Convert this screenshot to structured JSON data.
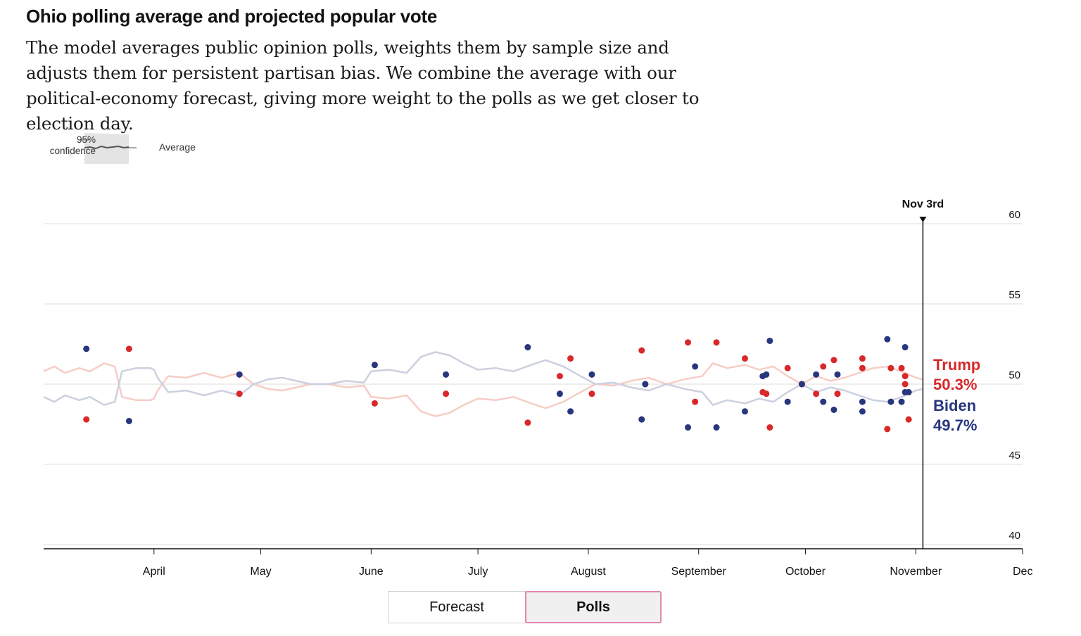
{
  "header": {
    "title": "Ohio polling average and projected popular vote",
    "description": "The model averages public opinion polls, weights them by sample size and adjusts them for persistent partisan bias. We combine the average with our political-economy forecast, giving more weight to the polls as we get closer to election day."
  },
  "legend": {
    "confidence_label_line1": "95%",
    "confidence_label_line2": "confidence",
    "average_label": "Average"
  },
  "toggle": {
    "forecast_label": "Forecast",
    "polls_label": "Polls",
    "active": "Polls"
  },
  "colors": {
    "trump": "#d8282a",
    "biden": "#28367d",
    "trump_line": "#f6cdc6",
    "biden_line": "#ccd0df",
    "grid": "#dcdcdc",
    "axis": "#121212"
  },
  "chart_data": {
    "type": "scatter",
    "ylim": [
      40,
      60
    ],
    "yticks": [
      40,
      45,
      50,
      55,
      60
    ],
    "xlim": [
      "2020-03-01",
      "2020-12-01"
    ],
    "xticks": [
      {
        "label": "April",
        "date": "2020-04-01"
      },
      {
        "label": "May",
        "date": "2020-05-01"
      },
      {
        "label": "June",
        "date": "2020-06-01"
      },
      {
        "label": "July",
        "date": "2020-07-01"
      },
      {
        "label": "August",
        "date": "2020-08-01"
      },
      {
        "label": "September",
        "date": "2020-09-01"
      },
      {
        "label": "October",
        "date": "2020-10-01"
      },
      {
        "label": "November",
        "date": "2020-11-01"
      },
      {
        "label": "Dec",
        "date": "2020-12-01"
      }
    ],
    "election_marker": {
      "label": "Nov 3rd",
      "date": "2020-11-03"
    },
    "series": [
      {
        "name": "Trump",
        "final_label": "50.3%",
        "color": "#d8282a",
        "average": [
          [
            "2020-03-01",
            50.8
          ],
          [
            "2020-03-04",
            51.1
          ],
          [
            "2020-03-07",
            50.7
          ],
          [
            "2020-03-11",
            51.0
          ],
          [
            "2020-03-14",
            50.8
          ],
          [
            "2020-03-18",
            51.3
          ],
          [
            "2020-03-21",
            51.1
          ],
          [
            "2020-03-23",
            49.2
          ],
          [
            "2020-03-27",
            49.0
          ],
          [
            "2020-04-01",
            49.1
          ],
          [
            "2020-03-31",
            49.0
          ],
          [
            "2020-04-02",
            49.6
          ],
          [
            "2020-04-05",
            50.5
          ],
          [
            "2020-04-10",
            50.4
          ],
          [
            "2020-04-15",
            50.7
          ],
          [
            "2020-04-20",
            50.4
          ],
          [
            "2020-04-25",
            50.7
          ],
          [
            "2020-04-29",
            50.0
          ],
          [
            "2020-05-03",
            49.7
          ],
          [
            "2020-05-07",
            49.6
          ],
          [
            "2020-05-11",
            49.8
          ],
          [
            "2020-05-15",
            50.0
          ],
          [
            "2020-05-20",
            50.0
          ],
          [
            "2020-05-25",
            49.8
          ],
          [
            "2020-05-30",
            49.9
          ],
          [
            "2020-06-01",
            49.2
          ],
          [
            "2020-06-06",
            49.1
          ],
          [
            "2020-06-11",
            49.3
          ],
          [
            "2020-06-15",
            48.3
          ],
          [
            "2020-06-19",
            48.0
          ],
          [
            "2020-06-23",
            48.2
          ],
          [
            "2020-06-27",
            48.7
          ],
          [
            "2020-07-01",
            49.1
          ],
          [
            "2020-07-06",
            49.0
          ],
          [
            "2020-07-11",
            49.2
          ],
          [
            "2020-07-16",
            48.8
          ],
          [
            "2020-07-20",
            48.5
          ],
          [
            "2020-07-25",
            48.9
          ],
          [
            "2020-07-29",
            49.4
          ],
          [
            "2020-08-03",
            50.0
          ],
          [
            "2020-08-08",
            49.9
          ],
          [
            "2020-08-13",
            50.2
          ],
          [
            "2020-08-18",
            50.4
          ],
          [
            "2020-08-23",
            50.0
          ],
          [
            "2020-08-28",
            50.3
          ],
          [
            "2020-09-02",
            50.5
          ],
          [
            "2020-09-05",
            51.3
          ],
          [
            "2020-09-09",
            51.0
          ],
          [
            "2020-09-14",
            51.2
          ],
          [
            "2020-09-18",
            50.9
          ],
          [
            "2020-09-22",
            51.1
          ],
          [
            "2020-09-26",
            50.5
          ],
          [
            "2020-09-30",
            50.0
          ],
          [
            "2020-10-04",
            50.5
          ],
          [
            "2020-10-08",
            50.2
          ],
          [
            "2020-10-12",
            50.4
          ],
          [
            "2020-10-16",
            50.7
          ],
          [
            "2020-10-20",
            51.0
          ],
          [
            "2020-10-24",
            51.1
          ],
          [
            "2020-10-28",
            50.8
          ],
          [
            "2020-11-01",
            50.4
          ],
          [
            "2020-11-03",
            50.3
          ]
        ],
        "polls": [
          [
            "2020-03-13",
            47.8
          ],
          [
            "2020-03-25",
            52.2
          ],
          [
            "2020-04-25",
            49.4
          ],
          [
            "2020-06-02",
            48.8
          ],
          [
            "2020-06-22",
            49.4
          ],
          [
            "2020-07-15",
            47.6
          ],
          [
            "2020-07-24",
            50.5
          ],
          [
            "2020-07-27",
            51.6
          ],
          [
            "2020-08-02",
            49.4
          ],
          [
            "2020-08-16",
            52.1
          ],
          [
            "2020-08-17",
            50.0
          ],
          [
            "2020-08-29",
            52.6
          ],
          [
            "2020-08-31",
            48.9
          ],
          [
            "2020-09-06",
            52.6
          ],
          [
            "2020-09-14",
            51.6
          ],
          [
            "2020-09-19",
            49.5
          ],
          [
            "2020-09-20",
            49.4
          ],
          [
            "2020-09-21",
            47.3
          ],
          [
            "2020-09-26",
            51.0
          ],
          [
            "2020-09-30",
            50.0
          ],
          [
            "2020-10-04",
            49.4
          ],
          [
            "2020-10-06",
            51.1
          ],
          [
            "2020-10-09",
            51.5
          ],
          [
            "2020-10-10",
            49.4
          ],
          [
            "2020-10-17",
            51.6
          ],
          [
            "2020-10-17",
            51.0
          ],
          [
            "2020-10-24",
            47.2
          ],
          [
            "2020-10-25",
            51.0
          ],
          [
            "2020-10-28",
            51.0
          ],
          [
            "2020-10-29",
            50.0
          ],
          [
            "2020-10-29",
            50.5
          ],
          [
            "2020-10-30",
            47.8
          ]
        ]
      },
      {
        "name": "Biden",
        "final_label": "49.7%",
        "color": "#28367d",
        "average": [
          [
            "2020-03-01",
            49.2
          ],
          [
            "2020-03-04",
            48.9
          ],
          [
            "2020-03-07",
            49.3
          ],
          [
            "2020-03-11",
            49.0
          ],
          [
            "2020-03-14",
            49.2
          ],
          [
            "2020-03-18",
            48.7
          ],
          [
            "2020-03-21",
            48.9
          ],
          [
            "2020-03-23",
            50.8
          ],
          [
            "2020-03-27",
            51.0
          ],
          [
            "2020-04-01",
            50.9
          ],
          [
            "2020-03-31",
            51.0
          ],
          [
            "2020-04-02",
            50.4
          ],
          [
            "2020-04-05",
            49.5
          ],
          [
            "2020-04-10",
            49.6
          ],
          [
            "2020-04-15",
            49.3
          ],
          [
            "2020-04-20",
            49.6
          ],
          [
            "2020-04-25",
            49.3
          ],
          [
            "2020-04-29",
            50.0
          ],
          [
            "2020-05-03",
            50.3
          ],
          [
            "2020-05-07",
            50.4
          ],
          [
            "2020-05-11",
            50.2
          ],
          [
            "2020-05-15",
            50.0
          ],
          [
            "2020-05-20",
            50.0
          ],
          [
            "2020-05-25",
            50.2
          ],
          [
            "2020-05-30",
            50.1
          ],
          [
            "2020-06-01",
            50.8
          ],
          [
            "2020-06-06",
            50.9
          ],
          [
            "2020-06-11",
            50.7
          ],
          [
            "2020-06-15",
            51.7
          ],
          [
            "2020-06-19",
            52.0
          ],
          [
            "2020-06-23",
            51.8
          ],
          [
            "2020-06-27",
            51.3
          ],
          [
            "2020-07-01",
            50.9
          ],
          [
            "2020-07-06",
            51.0
          ],
          [
            "2020-07-11",
            50.8
          ],
          [
            "2020-07-16",
            51.2
          ],
          [
            "2020-07-20",
            51.5
          ],
          [
            "2020-07-25",
            51.1
          ],
          [
            "2020-07-29",
            50.6
          ],
          [
            "2020-08-03",
            50.0
          ],
          [
            "2020-08-08",
            50.1
          ],
          [
            "2020-08-13",
            49.8
          ],
          [
            "2020-08-18",
            49.6
          ],
          [
            "2020-08-23",
            50.0
          ],
          [
            "2020-08-28",
            49.7
          ],
          [
            "2020-09-02",
            49.5
          ],
          [
            "2020-09-05",
            48.7
          ],
          [
            "2020-09-09",
            49.0
          ],
          [
            "2020-09-14",
            48.8
          ],
          [
            "2020-09-18",
            49.1
          ],
          [
            "2020-09-22",
            48.9
          ],
          [
            "2020-09-26",
            49.5
          ],
          [
            "2020-09-30",
            50.0
          ],
          [
            "2020-10-04",
            49.5
          ],
          [
            "2020-10-08",
            49.8
          ],
          [
            "2020-10-12",
            49.6
          ],
          [
            "2020-10-16",
            49.3
          ],
          [
            "2020-10-20",
            49.0
          ],
          [
            "2020-10-24",
            48.9
          ],
          [
            "2020-10-28",
            49.2
          ],
          [
            "2020-11-01",
            49.6
          ],
          [
            "2020-11-03",
            49.7
          ]
        ],
        "polls": [
          [
            "2020-03-13",
            52.2
          ],
          [
            "2020-03-25",
            47.7
          ],
          [
            "2020-04-25",
            50.6
          ],
          [
            "2020-06-02",
            51.2
          ],
          [
            "2020-06-22",
            50.6
          ],
          [
            "2020-07-15",
            52.3
          ],
          [
            "2020-07-24",
            49.4
          ],
          [
            "2020-07-27",
            48.3
          ],
          [
            "2020-08-02",
            50.6
          ],
          [
            "2020-08-16",
            47.8
          ],
          [
            "2020-08-17",
            50.0
          ],
          [
            "2020-08-29",
            47.3
          ],
          [
            "2020-08-31",
            51.1
          ],
          [
            "2020-09-06",
            47.3
          ],
          [
            "2020-09-14",
            48.3
          ],
          [
            "2020-09-19",
            50.5
          ],
          [
            "2020-09-20",
            50.6
          ],
          [
            "2020-09-21",
            52.7
          ],
          [
            "2020-09-26",
            48.9
          ],
          [
            "2020-09-30",
            50.0
          ],
          [
            "2020-10-04",
            50.6
          ],
          [
            "2020-10-06",
            48.9
          ],
          [
            "2020-10-09",
            48.4
          ],
          [
            "2020-10-10",
            50.6
          ],
          [
            "2020-10-17",
            48.3
          ],
          [
            "2020-10-17",
            48.9
          ],
          [
            "2020-10-24",
            52.8
          ],
          [
            "2020-10-25",
            48.9
          ],
          [
            "2020-10-28",
            48.9
          ],
          [
            "2020-10-29",
            52.3
          ],
          [
            "2020-10-29",
            49.5
          ],
          [
            "2020-10-30",
            49.5
          ]
        ]
      }
    ],
    "grid": true
  }
}
